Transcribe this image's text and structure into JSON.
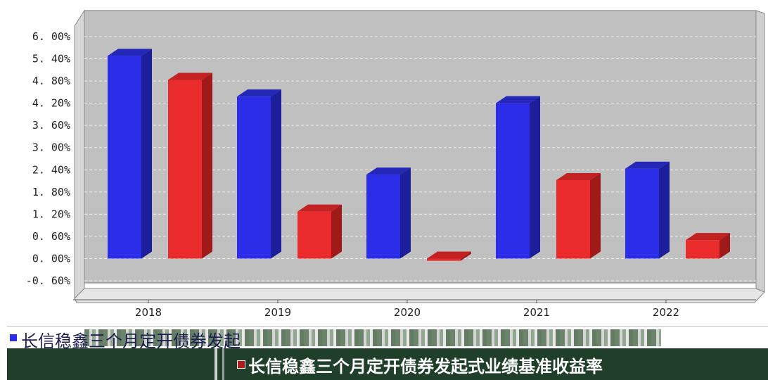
{
  "chart_data": {
    "type": "bar",
    "categories": [
      "2018",
      "2019",
      "2020",
      "2021",
      "2022"
    ],
    "series": [
      {
        "name": "长信稳鑫三个月定开债券发起",
        "color": "#2b2de8",
        "values": [
          5.48,
          4.38,
          2.27,
          4.2,
          2.43
        ]
      },
      {
        "name": "长信稳鑫三个月定开债券发起式业绩基准收益率",
        "color": "#e92b2b",
        "values": [
          4.83,
          1.27,
          -0.06,
          2.12,
          0.5
        ]
      }
    ],
    "yticks": [
      "6. 00%",
      "5. 40%",
      "4. 80%",
      "4. 20%",
      "3. 60%",
      "3. 00%",
      "2. 40%",
      "1. 80%",
      "1. 20%",
      "0. 60%",
      "0. 00%",
      "-0. 60%"
    ],
    "ylim": [
      -0.6,
      6.0
    ],
    "grid": true,
    "legend_position": "bottom"
  },
  "legend": {
    "item1": "长信稳鑫三个月定开债券发起",
    "item2": "长信稳鑫三个月定开债券发起式业绩基准收益率"
  }
}
